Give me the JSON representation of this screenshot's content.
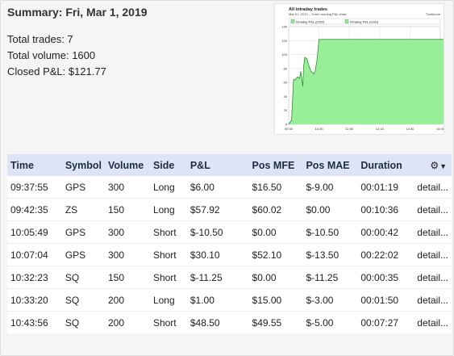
{
  "summary": {
    "title": "Summary: Fri, Mar 1, 2019",
    "total_trades": "Total trades: 7",
    "total_volume": "Total volume: 1600",
    "closed_pnl": "Closed P&L: $121.77"
  },
  "chart": {
    "brand": "Tradervue",
    "colors": {
      "area": "#99ee99",
      "line": "#2f8f2f",
      "grid": "#dddddd"
    },
    "chart_data": {
      "type": "area",
      "title": "All intraday trades",
      "subtitle": "Mar 01, 2019 -- 5-min running P&L chart",
      "legend": [
        "Intraday P&L (USD)",
        "Intraday P&L (USD)"
      ],
      "legend_placement": "top",
      "x_ticks": [
        "09:30",
        "10:45",
        "12:00",
        "13:15",
        "14:30",
        "15:45"
      ],
      "y_ticks": [
        "0",
        "20",
        "40",
        "60",
        "80",
        "100",
        "120",
        "140"
      ],
      "ylim": [
        0,
        140
      ],
      "grid": true,
      "series": [
        {
          "name": "Intraday P&L (USD)",
          "x": [
            "09:30",
            "09:37",
            "09:40",
            "09:42",
            "09:47",
            "09:52",
            "09:57",
            "10:00",
            "10:05",
            "10:07",
            "10:10",
            "10:15",
            "10:20",
            "10:25",
            "10:30",
            "10:32",
            "10:35",
            "10:40",
            "10:45",
            "11:00",
            "12:00",
            "13:00",
            "14:00",
            "15:00",
            "15:55"
          ],
          "y": [
            0,
            6,
            40,
            64,
            64,
            68,
            66,
            76,
            54,
            84,
            96,
            94,
            84,
            76,
            74,
            72,
            75,
            92,
            121.77,
            121.77,
            121.77,
            121.77,
            121.77,
            121.77,
            121.77
          ]
        }
      ]
    }
  },
  "table": {
    "headers": {
      "time": "Time",
      "symbol": "Symbol",
      "volume": "Volume",
      "side": "Side",
      "pnl": "P&L",
      "pos_mfe": "Pos MFE",
      "pos_mae": "Pos MAE",
      "duration": "Duration"
    },
    "gear_icon": "⚙",
    "caret_icon": "▼",
    "rows": [
      {
        "time": "09:37:55",
        "symbol": "GPS",
        "volume": "300",
        "side": "Long",
        "pnl": "$6.00",
        "mfe": "$16.50",
        "mae": "$-9.00",
        "duration": "00:01:19",
        "detail": "detail..."
      },
      {
        "time": "09:42:35",
        "symbol": "ZS",
        "volume": "150",
        "side": "Long",
        "pnl": "$57.92",
        "mfe": "$60.02",
        "mae": "$0.00",
        "duration": "00:10:36",
        "detail": "detail..."
      },
      {
        "time": "10:05:49",
        "symbol": "GPS",
        "volume": "300",
        "side": "Short",
        "pnl": "$-10.50",
        "mfe": "$0.00",
        "mae": "$-10.50",
        "duration": "00:00:42",
        "detail": "detail..."
      },
      {
        "time": "10:07:04",
        "symbol": "GPS",
        "volume": "300",
        "side": "Short",
        "pnl": "$30.10",
        "mfe": "$52.10",
        "mae": "$-13.50",
        "duration": "00:22:02",
        "detail": "detail..."
      },
      {
        "time": "10:32:23",
        "symbol": "SQ",
        "volume": "150",
        "side": "Short",
        "pnl": "$-11.25",
        "mfe": "$0.00",
        "mae": "$-11.25",
        "duration": "00:00:35",
        "detail": "detail..."
      },
      {
        "time": "10:33:20",
        "symbol": "SQ",
        "volume": "200",
        "side": "Long",
        "pnl": "$1.00",
        "mfe": "$15.00",
        "mae": "$-3.00",
        "duration": "00:01:50",
        "detail": "detail..."
      },
      {
        "time": "10:43:56",
        "symbol": "SQ",
        "volume": "200",
        "side": "Short",
        "pnl": "$48.50",
        "mfe": "$49.55",
        "mae": "$-5.00",
        "duration": "00:07:27",
        "detail": "detail..."
      }
    ]
  }
}
